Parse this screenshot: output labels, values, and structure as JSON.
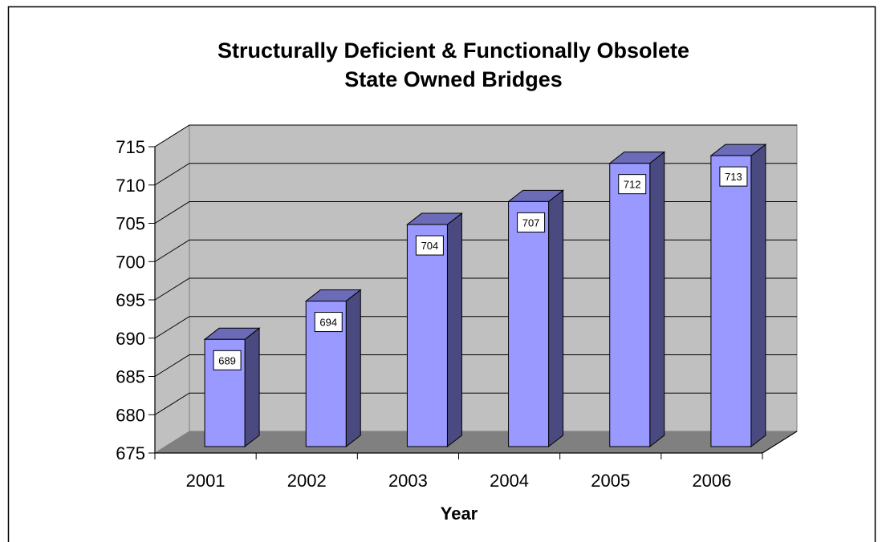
{
  "chart_data": {
    "type": "bar",
    "title": [
      "Structurally Deficient & Functionally Obsolete",
      "State Owned Bridges"
    ],
    "xlabel": "Year",
    "ylabel": "",
    "categories": [
      "2001",
      "2002",
      "2003",
      "2004",
      "2005",
      "2006"
    ],
    "values": [
      689,
      694,
      704,
      707,
      712,
      713
    ],
    "data_labels": [
      "689",
      "694",
      "704",
      "707",
      "712",
      "713"
    ],
    "ylim": [
      675,
      715
    ],
    "ytick_step": 5,
    "yticks": [
      "675",
      "680",
      "685",
      "690",
      "695",
      "700",
      "705",
      "710",
      "715"
    ],
    "grid": true,
    "legend": "none",
    "three_d": true,
    "colors": {
      "bar_front": "#9999ff",
      "bar_side": "#4a4a80",
      "bar_top": "#6b6bb8",
      "back_wall": "#c0c0c0",
      "floor": "#808080",
      "gridline": "#000000"
    }
  }
}
